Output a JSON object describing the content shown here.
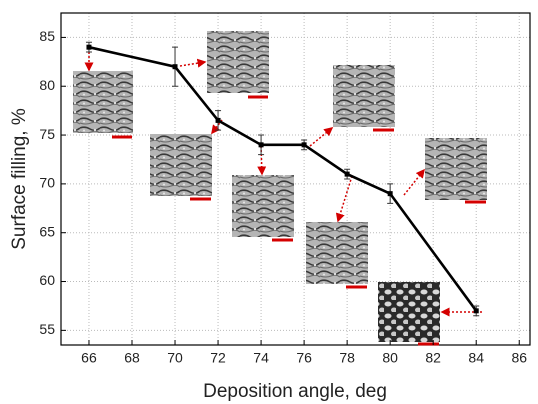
{
  "chart_data": {
    "type": "line",
    "x_label": "Deposition angle, deg",
    "y_label": "Surface filling, %",
    "x": [
      66,
      70,
      72,
      74,
      76,
      78,
      80,
      84
    ],
    "series": [
      {
        "color": "#000000",
        "values": [
          84,
          82,
          76.5,
          74,
          74,
          71,
          69,
          57
        ],
        "errors": [
          0.5,
          2,
          1,
          1,
          0.5,
          0.5,
          1,
          0.5
        ]
      }
    ],
    "xlim": [
      64.7,
      86.5
    ],
    "xticks": [
      66,
      68,
      70,
      72,
      74,
      76,
      78,
      80,
      82,
      84,
      86
    ],
    "ylim": [
      53.5,
      87.5
    ],
    "yticks": [
      55,
      60,
      65,
      70,
      75,
      80,
      85
    ],
    "grid": true
  }
}
